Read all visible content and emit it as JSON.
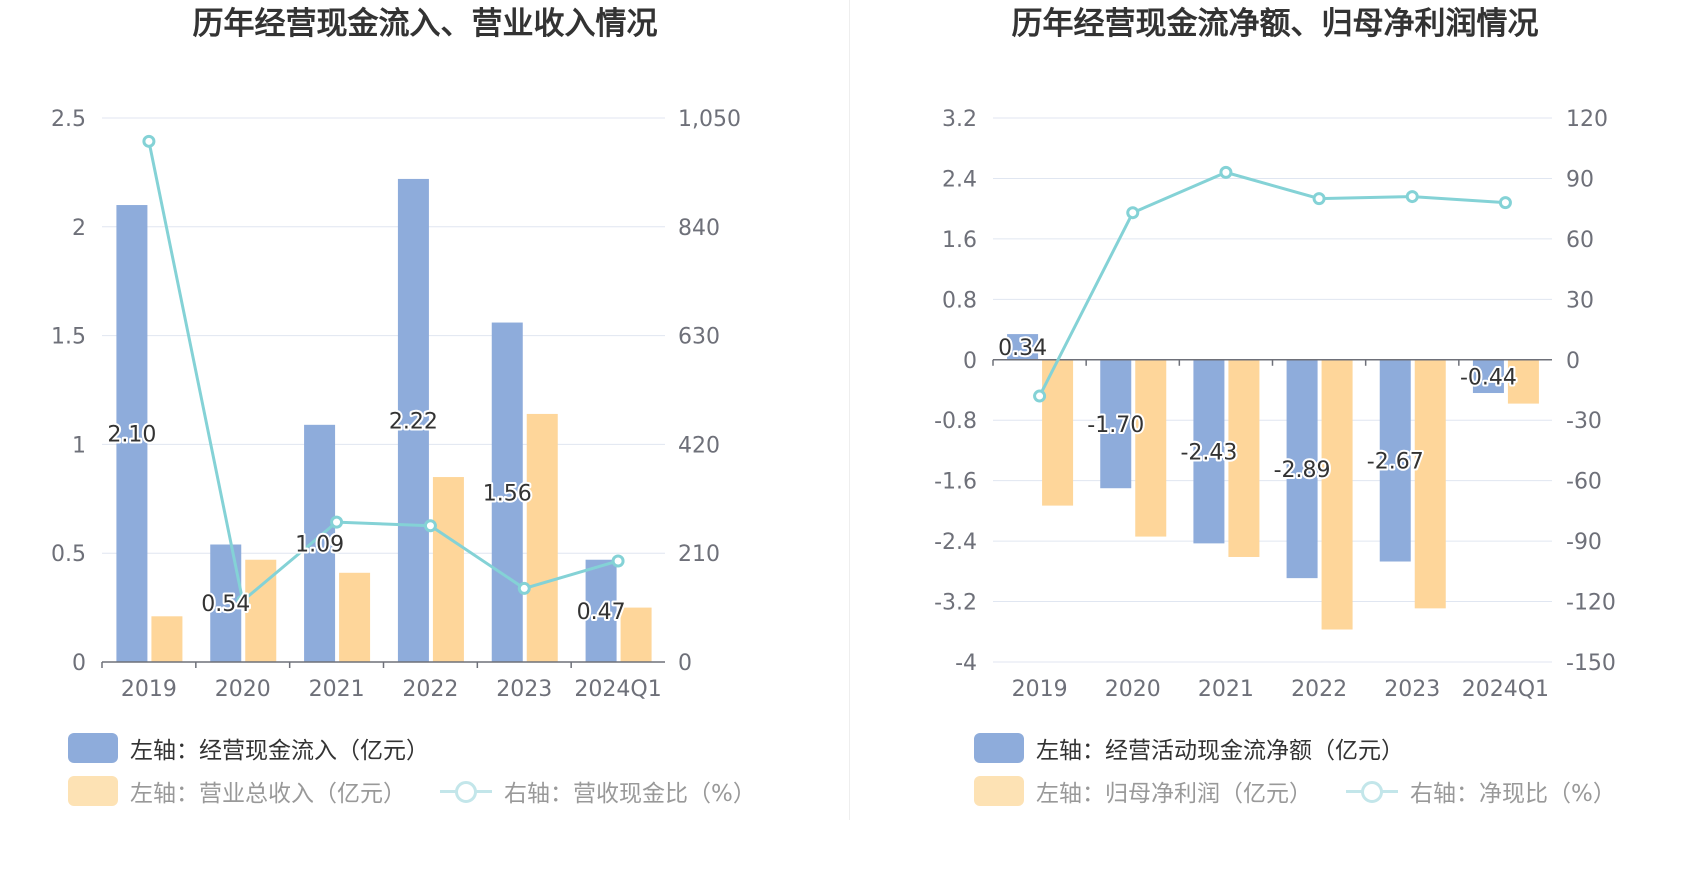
{
  "charts": [
    {
      "title": "历年经营现金流入、营业收入情况",
      "legend": [
        {
          "label": "左轴：经营现金流入（亿元）",
          "kind": "bar",
          "color": "#8eacdb",
          "dim": false
        },
        {
          "label": "左轴：营业总收入（亿元）",
          "kind": "bar",
          "color": "#fde2b4",
          "dim": true
        },
        {
          "label": "右轴：营收现金比（%）",
          "kind": "line",
          "color": "#c3e6ea",
          "dim": true
        }
      ]
    },
    {
      "title": "历年经营现金流净额、归母净利润情况",
      "legend": [
        {
          "label": "左轴：经营活动现金流净额（亿元）",
          "kind": "bar",
          "color": "#8eacdb",
          "dim": false
        },
        {
          "label": "左轴：归母净利润（亿元）",
          "kind": "bar",
          "color": "#fde2b4",
          "dim": true
        },
        {
          "label": "右轴：净现比（%）",
          "kind": "line",
          "color": "#c3e6ea",
          "dim": true
        }
      ]
    }
  ],
  "chart_data": [
    {
      "type": "bar",
      "title": "历年经营现金流入、营业收入情况",
      "categories": [
        "2019",
        "2020",
        "2021",
        "2022",
        "2023",
        "2024Q1"
      ],
      "y_left": {
        "min": 0,
        "max": 2.5,
        "ticks": [
          "0",
          "0.5",
          "1",
          "1.5",
          "2",
          "2.5"
        ],
        "tick_values": [
          0,
          0.5,
          1,
          1.5,
          2,
          2.5
        ]
      },
      "y_right": {
        "min": 0,
        "max": 1050,
        "ticks": [
          "0",
          "210",
          "420",
          "630",
          "840",
          "1,050"
        ],
        "tick_values": [
          0,
          210,
          420,
          630,
          840,
          1050
        ]
      },
      "grid": true,
      "legend_position": "bottom",
      "series": [
        {
          "name": "左轴：经营现金流入（亿元）",
          "type": "bar",
          "axis": "left",
          "color": "#8eacdb",
          "values": [
            2.1,
            0.54,
            1.09,
            2.22,
            1.56,
            0.47
          ],
          "labels": [
            "2.10",
            "0.54",
            "1.09",
            "2.22",
            "1.56",
            "0.47"
          ]
        },
        {
          "name": "左轴：营业总收入（亿元）",
          "type": "bar",
          "axis": "left",
          "color": "#fed69a",
          "values": [
            0.21,
            0.47,
            0.41,
            0.85,
            1.14,
            0.25
          ]
        },
        {
          "name": "右轴：营收现金比（%）",
          "type": "line",
          "axis": "right",
          "color": "#84d2d6",
          "values": [
            1005,
            118,
            270,
            263,
            142,
            195
          ]
        }
      ]
    },
    {
      "type": "bar",
      "title": "历年经营现金流净额、归母净利润情况",
      "categories": [
        "2019",
        "2020",
        "2021",
        "2022",
        "2023",
        "2024Q1"
      ],
      "y_left": {
        "min": -4,
        "max": 3.2,
        "ticks": [
          "-4",
          "-3.2",
          "-2.4",
          "-1.6",
          "-0.8",
          "0",
          "0.8",
          "1.6",
          "2.4",
          "3.2"
        ],
        "tick_values": [
          -4,
          -3.2,
          -2.4,
          -1.6,
          -0.8,
          0,
          0.8,
          1.6,
          2.4,
          3.2
        ]
      },
      "y_right": {
        "min": -150,
        "max": 120,
        "ticks": [
          "-150",
          "-120",
          "-90",
          "-60",
          "-30",
          "0",
          "30",
          "60",
          "90",
          "120"
        ],
        "tick_values": [
          -150,
          -120,
          -90,
          -60,
          -30,
          0,
          30,
          60,
          90,
          120
        ]
      },
      "grid": true,
      "legend_position": "bottom",
      "series": [
        {
          "name": "左轴：经营活动现金流净额（亿元）",
          "type": "bar",
          "axis": "left",
          "color": "#8eacdb",
          "values": [
            0.34,
            -1.7,
            -2.43,
            -2.89,
            -2.67,
            -0.44
          ],
          "labels": [
            "0.34",
            "-1.70",
            "-2.43",
            "-2.89",
            "-2.67",
            "-0.44"
          ]
        },
        {
          "name": "左轴：归母净利润（亿元）",
          "type": "bar",
          "axis": "left",
          "color": "#fed69a",
          "values": [
            -1.93,
            -2.34,
            -2.61,
            -3.57,
            -3.29,
            -0.58
          ]
        },
        {
          "name": "右轴：净现比（%）",
          "type": "line",
          "axis": "right",
          "color": "#84d2d6",
          "values": [
            -18,
            73,
            93,
            80,
            81,
            78
          ]
        }
      ]
    }
  ]
}
